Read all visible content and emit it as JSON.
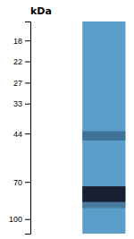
{
  "chart_data": {
    "type": "blot",
    "title": "kDa",
    "log": "y",
    "ylim": [
      115,
      15
    ],
    "yticks": [
      100,
      70,
      44,
      33,
      27,
      22,
      18
    ],
    "lane": [
      15,
      115
    ],
    "lane_color": "#5b9ec9",
    "bands": [
      [
        73,
        85
      ],
      [
        85,
        90
      ],
      [
        43,
        47
      ]
    ],
    "colors": [
      "#181f31",
      "#497b9f",
      "#407398"
    ]
  }
}
